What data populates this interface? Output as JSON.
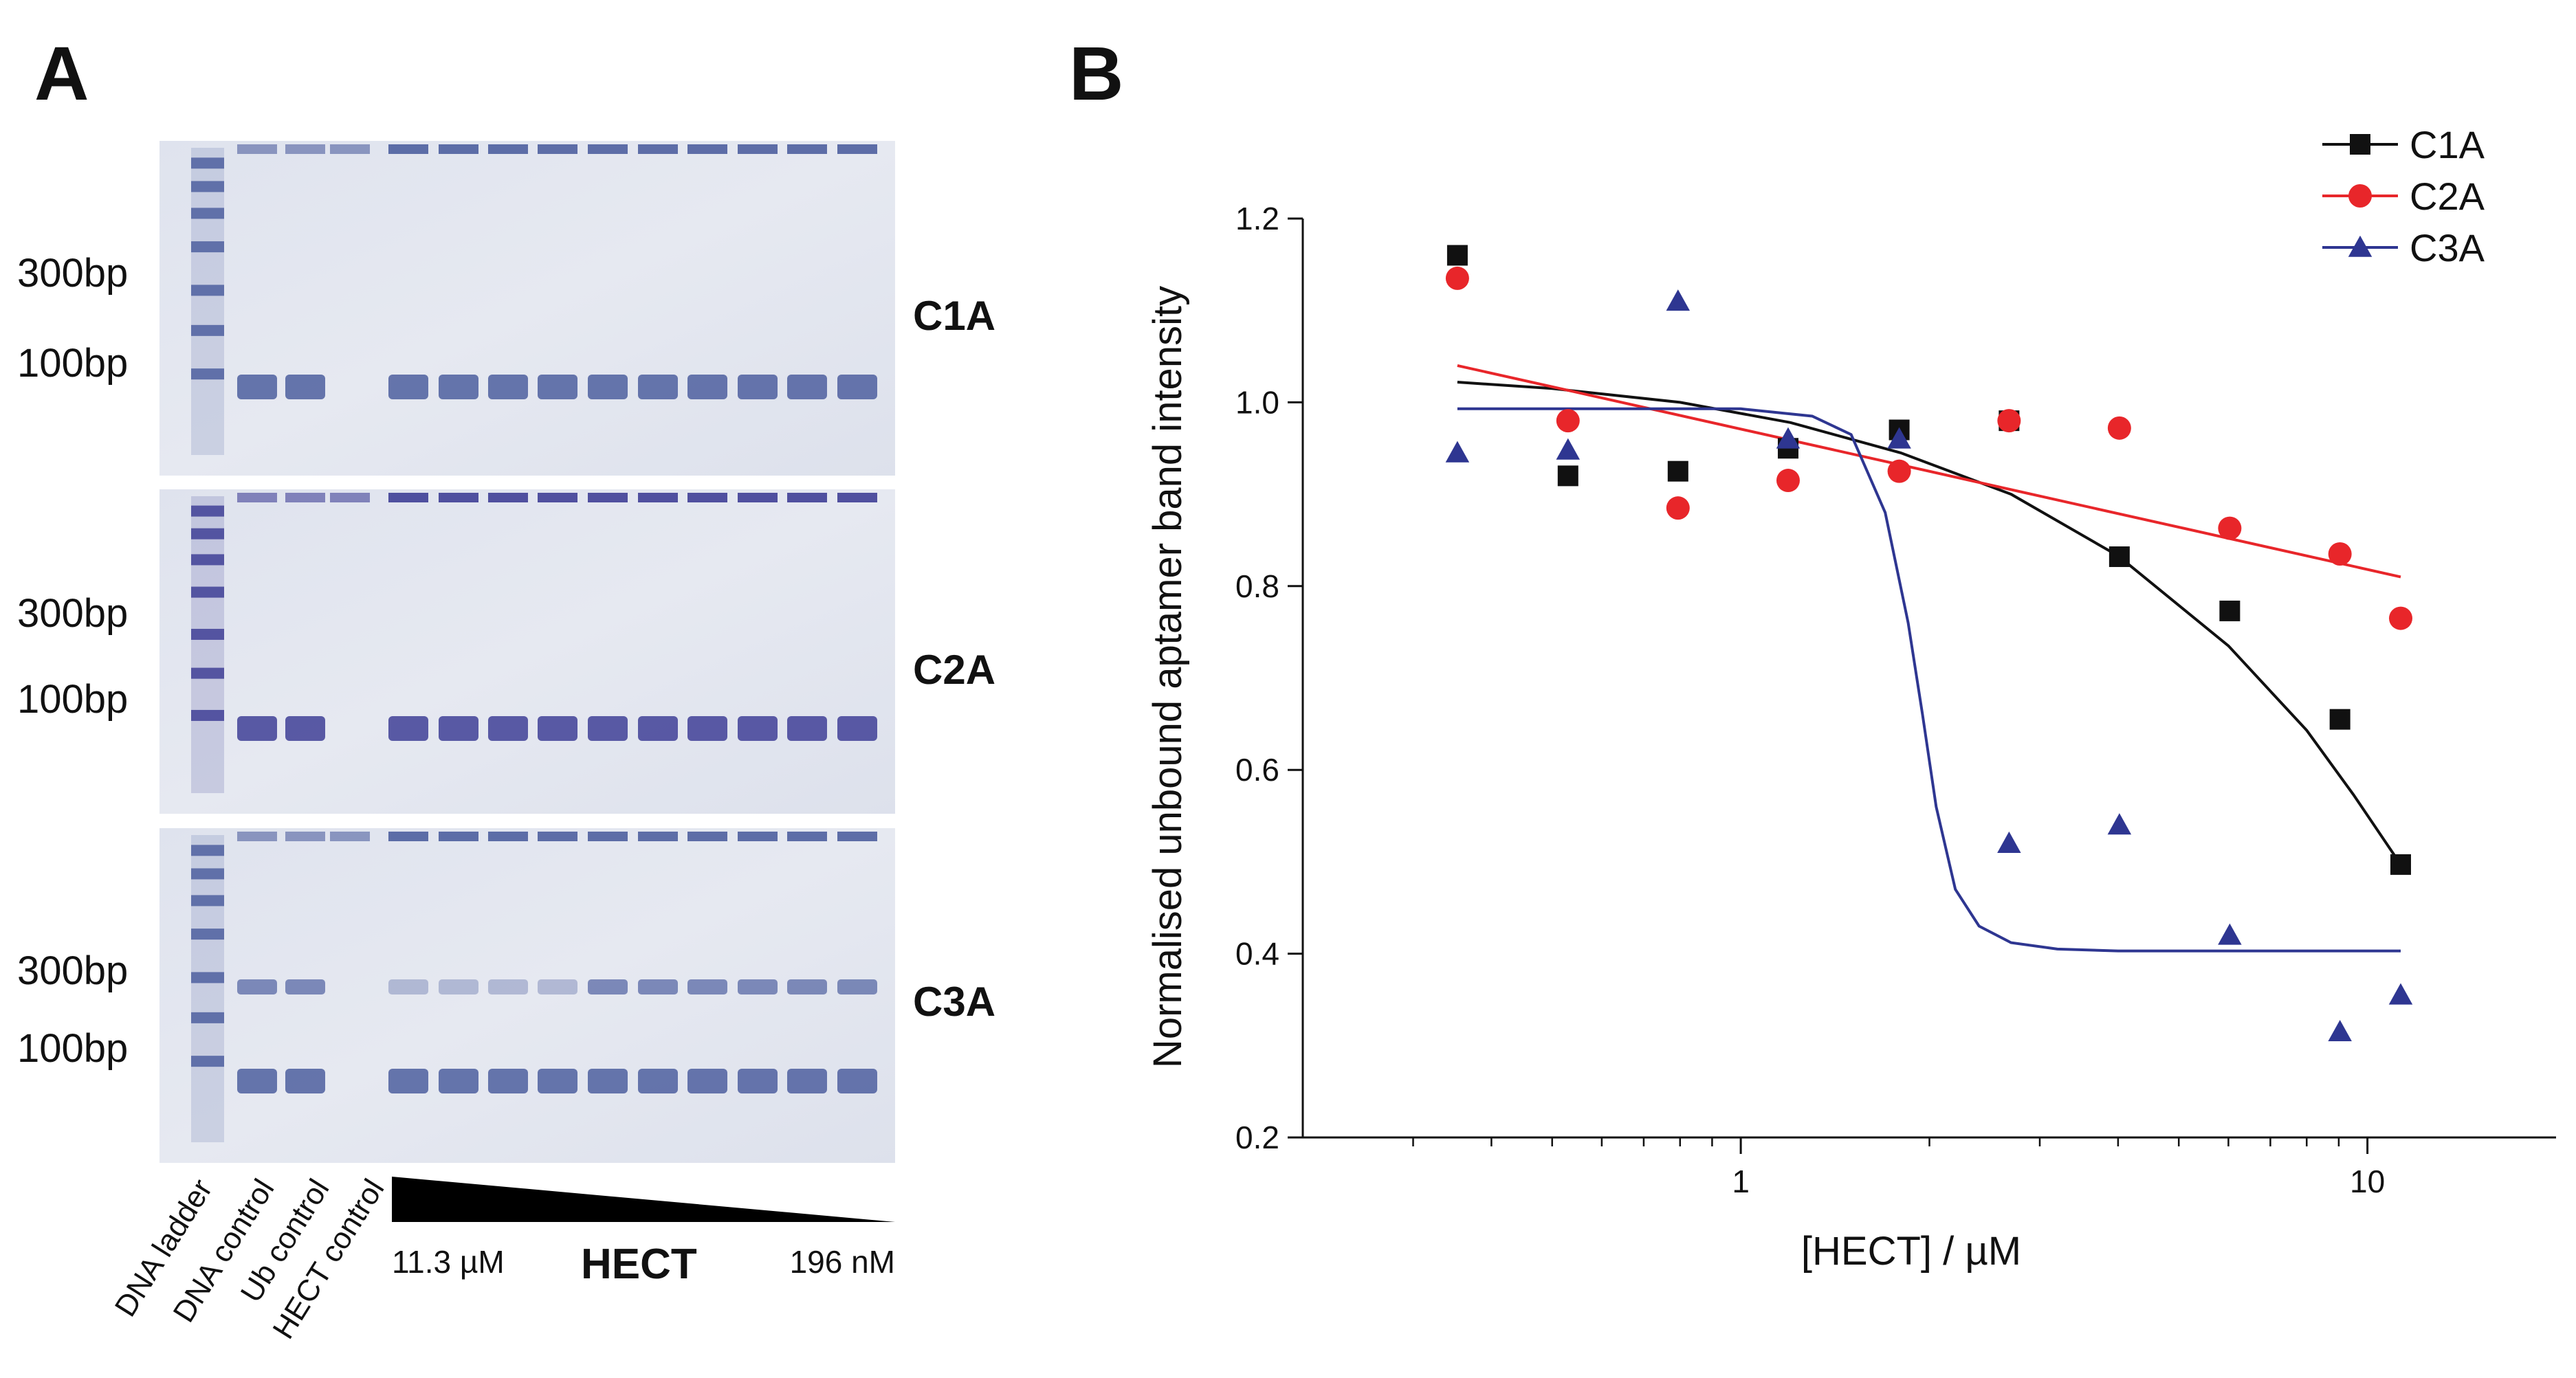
{
  "panels": {
    "a_label": "A",
    "b_label": "B"
  },
  "gels": [
    {
      "name": "C1A",
      "bp_labels": [
        "300bp",
        "100bp"
      ],
      "color": "#4e5f9f"
    },
    {
      "name": "C2A",
      "bp_labels": [
        "300bp",
        "100bp"
      ],
      "color": "#3f3f96"
    },
    {
      "name": "C3A",
      "bp_labels": [
        "300bp",
        "100bp"
      ],
      "color": "#4e5f9f"
    }
  ],
  "lane_labels": [
    "DNA ladder",
    "DNA control",
    "Ub control",
    "HECT control"
  ],
  "gradient": {
    "start_label": "11.3 µM",
    "title": "HECT",
    "end_label": "196 nM"
  },
  "chart_data": {
    "type": "scatter",
    "xlabel": "[HECT] / µM",
    "ylabel": "Normalised unbound aptamer band intensity",
    "xscale": "log",
    "xlim": [
      0.2,
      20
    ],
    "ylim": [
      0.2,
      1.2
    ],
    "xticks": [
      1,
      10
    ],
    "xtick_labels": [
      "1",
      "10"
    ],
    "yticks": [
      0.2,
      0.4,
      0.6,
      0.8,
      1.0,
      1.2
    ],
    "ytick_labels": [
      "0.2",
      "0.4",
      "0.6",
      "0.8",
      "1.0",
      "1.2"
    ],
    "legend_position": "top-right",
    "series": [
      {
        "name": "C1A",
        "color": "#111111",
        "marker": "square",
        "x": [
          0.353,
          0.53,
          0.794,
          1.19,
          1.79,
          2.68,
          4.02,
          6.03,
          9.04,
          11.3
        ],
        "y": [
          1.16,
          0.92,
          0.925,
          0.95,
          0.97,
          0.98,
          0.832,
          0.773,
          0.655,
          0.497
        ],
        "fit": {
          "x": [
            0.353,
            0.5,
            0.8,
            1.2,
            1.8,
            2.7,
            4,
            6,
            8,
            9.5,
            11.3
          ],
          "y": [
            1.022,
            1.015,
            1.0,
            0.978,
            0.945,
            0.9,
            0.833,
            0.735,
            0.643,
            0.573,
            0.497
          ]
        }
      },
      {
        "name": "C2A",
        "color": "#e8262a",
        "marker": "circle",
        "x": [
          0.353,
          0.53,
          0.794,
          1.19,
          1.79,
          2.68,
          4.02,
          6.03,
          9.04,
          11.3
        ],
        "y": [
          1.135,
          0.98,
          0.885,
          0.915,
          0.925,
          0.98,
          0.972,
          0.863,
          0.835,
          0.765
        ],
        "fit": {
          "x": [
            0.353,
            11.3
          ],
          "y": [
            1.04,
            0.81
          ]
        }
      },
      {
        "name": "C3A",
        "color": "#2e3691",
        "marker": "triangle",
        "x": [
          0.353,
          0.53,
          0.794,
          1.19,
          1.79,
          2.68,
          4.02,
          6.03,
          9.04,
          11.3
        ],
        "y": [
          0.945,
          0.948,
          1.11,
          0.96,
          0.96,
          0.52,
          0.54,
          0.42,
          0.315,
          0.355
        ],
        "fit": {
          "x": [
            0.353,
            1,
            1.3,
            1.5,
            1.7,
            1.85,
            1.95,
            2.05,
            2.2,
            2.4,
            2.7,
            3.2,
            4,
            11.3
          ],
          "y": [
            0.993,
            0.993,
            0.985,
            0.965,
            0.88,
            0.76,
            0.66,
            0.56,
            0.47,
            0.43,
            0.412,
            0.405,
            0.403,
            0.403
          ]
        }
      }
    ]
  }
}
